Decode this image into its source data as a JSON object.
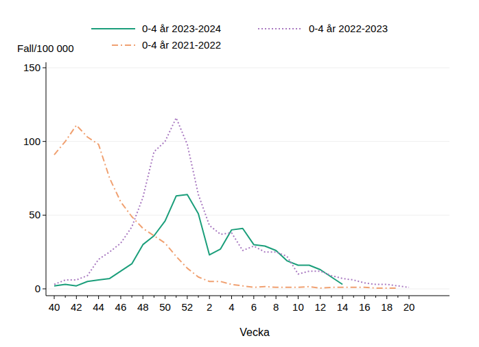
{
  "chart_data": {
    "type": "line",
    "y_label": "Fall/100 000",
    "x_label": "Vecka",
    "categories": [
      40,
      null,
      42,
      null,
      44,
      null,
      46,
      null,
      48,
      null,
      50,
      null,
      52,
      null,
      2,
      null,
      4,
      null,
      6,
      null,
      8,
      null,
      10,
      null,
      12,
      null,
      14,
      null,
      16,
      null,
      18,
      null,
      20
    ],
    "series": [
      {
        "name": "0-4 år 2023-2024",
        "color": "#1a9e7a",
        "line_style": "solid",
        "values": [
          2,
          3,
          2,
          5,
          6,
          7,
          12,
          17,
          30,
          36,
          46,
          63,
          64,
          51,
          23,
          27,
          40,
          41,
          30,
          29,
          26,
          19,
          16,
          16,
          13,
          8,
          3,
          null,
          null,
          null,
          null,
          null,
          null
        ]
      },
      {
        "name": "0-4 år 2022-2023",
        "color": "#a878c0",
        "line_style": "dotted",
        "values": [
          3,
          6,
          6,
          9,
          20,
          25,
          31,
          42,
          62,
          93,
          100,
          116,
          98,
          64,
          43,
          37,
          38,
          26,
          29,
          25,
          25,
          22,
          10,
          12,
          12,
          9,
          7,
          6,
          4,
          3,
          3,
          2,
          1
        ]
      },
      {
        "name": "0-4 år 2021-2022",
        "color": "#f0a070",
        "line_style": "dashdot",
        "values": [
          91,
          100,
          111,
          103,
          98,
          75,
          59,
          49,
          41,
          36,
          31,
          22,
          14,
          8,
          5,
          5,
          3,
          2,
          1,
          1.5,
          1,
          1,
          1,
          1.5,
          0.5,
          1,
          1,
          1,
          1,
          0.5,
          0.5,
          0.5,
          null
        ]
      }
    ],
    "ylim": [
      0,
      150
    ],
    "yticks": [
      0,
      50,
      100,
      150
    ],
    "grid": true,
    "legend": "top"
  }
}
